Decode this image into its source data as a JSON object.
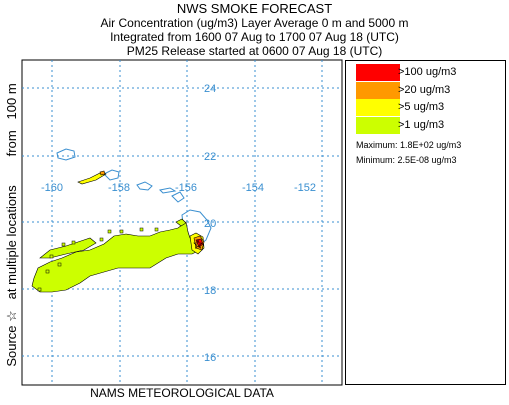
{
  "header": {
    "title": "NWS SMOKE FORECAST",
    "line1": "Air Concentration (ug/m3) Layer Average    0 m and  5000 m",
    "line2": "Integrated from 1600 07 Aug to 1700 07 Aug 18 (UTC)",
    "line3": "PM25 Release started at 0600 07 Aug 18 (UTC)"
  },
  "side_label": "Source ☆   at multiple locations        from   100 m",
  "footer": "NAMS METEOROLOGICAL DATA",
  "map": {
    "lat_labels": [
      "24",
      "22",
      "20",
      "18",
      "16"
    ],
    "lon_labels": [
      "-160",
      "-158",
      "-156",
      "-154",
      "-152"
    ],
    "colors": {
      "grid": "#3a8fd0",
      "coast": "#3a8fd0",
      "label": "#3a8fd0"
    }
  },
  "legend": {
    "items": [
      {
        "label": ">100 ug/m3",
        "color": "#ff0000"
      },
      {
        "label": ">20 ug/m3",
        "color": "#ff9900"
      },
      {
        "label": ">5 ug/m3",
        "color": "#ffff00"
      },
      {
        "label": ">1 ug/m3",
        "color": "#ccff00"
      }
    ],
    "maximum": "Maximum: 1.8E+02 ug/m3",
    "minimum": "Minimum: 2.5E-08 ug/m3"
  }
}
